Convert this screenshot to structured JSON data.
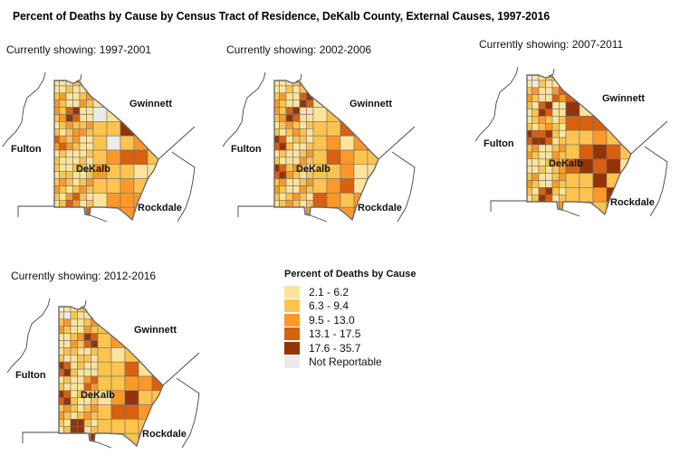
{
  "title": "Percent of Deaths by Cause by Census Tract of Residence, DeKalb County, External Causes, 1997-2016",
  "labels": {
    "county": "DeKalb",
    "neighbors": [
      "Gwinnett",
      "Fulton",
      "Rockdale"
    ]
  },
  "panels": [
    {
      "caption": "Currently showing: 1997-2001",
      "period": "1997-2001"
    },
    {
      "caption": "Currently showing: 2002-2006",
      "period": "2002-2006"
    },
    {
      "caption": "Currently showing: 2007-2011",
      "period": "2007-2011"
    },
    {
      "caption": "Currently showing: 2012-2016",
      "period": "2012-2016"
    }
  ],
  "legend": {
    "title": "Percent of Deaths by Cause",
    "items": [
      {
        "label": "2.1 - 6.2",
        "color": "#fde49c"
      },
      {
        "label": "6.3 - 9.4",
        "color": "#fec44f"
      },
      {
        "label": "9.5 - 13.0",
        "color": "#fe9929"
      },
      {
        "label": "13.1 - 17.5",
        "color": "#d8600f"
      },
      {
        "label": "17.6 - 35.7",
        "color": "#933408"
      },
      {
        "label": "Not Reportable",
        "color": "#ebebeb"
      }
    ]
  },
  "chart_data": {
    "type": "choropleth",
    "title": "Percent of Deaths by Cause by Census Tract of Residence, DeKalb County, External Causes, 1997-2016",
    "geography": "DeKalb County census tracts",
    "periods": [
      "1997-2001",
      "2002-2006",
      "2007-2011",
      "2012-2016"
    ],
    "classes": [
      {
        "range": [
          2.1,
          6.2
        ],
        "color": "#fde49c"
      },
      {
        "range": [
          6.3,
          9.4
        ],
        "color": "#fec44f"
      },
      {
        "range": [
          9.5,
          13.0
        ],
        "color": "#fe9929"
      },
      {
        "range": [
          13.1,
          17.5
        ],
        "color": "#d8600f"
      },
      {
        "range": [
          17.6,
          35.7
        ],
        "color": "#933408"
      },
      {
        "label": "Not Reportable",
        "color": "#ebebeb"
      }
    ],
    "annotations": [
      "DeKalb",
      "Gwinnett",
      "Fulton",
      "Rockdale"
    ],
    "tract_class_grids": [
      [
        "11222212",
        "21211100",
        "34101210",
        "13222500",
        "42120230",
        "11123442",
        "21232211",
        "22222321",
        "23213332",
        "33322333"
      ],
      [
        "11322512",
        "21411400",
        "34112210",
        "13122400",
        "51223130",
        "11224322",
        "52222311",
        "21223411",
        "22243232",
        "33222333"
      ],
      [
        "01123412",
        "21343300",
        "24151530",
        "13144411",
        "54222322",
        "21224542",
        "11345451",
        "21222522",
        "24222352",
        "33222233"
      ],
      [
        "01122312",
        "21221341",
        "12523300",
        "12121222",
        "51122412",
        "11322334",
        "51213522",
        "22224432",
        "25222222",
        "33422233"
      ]
    ]
  }
}
